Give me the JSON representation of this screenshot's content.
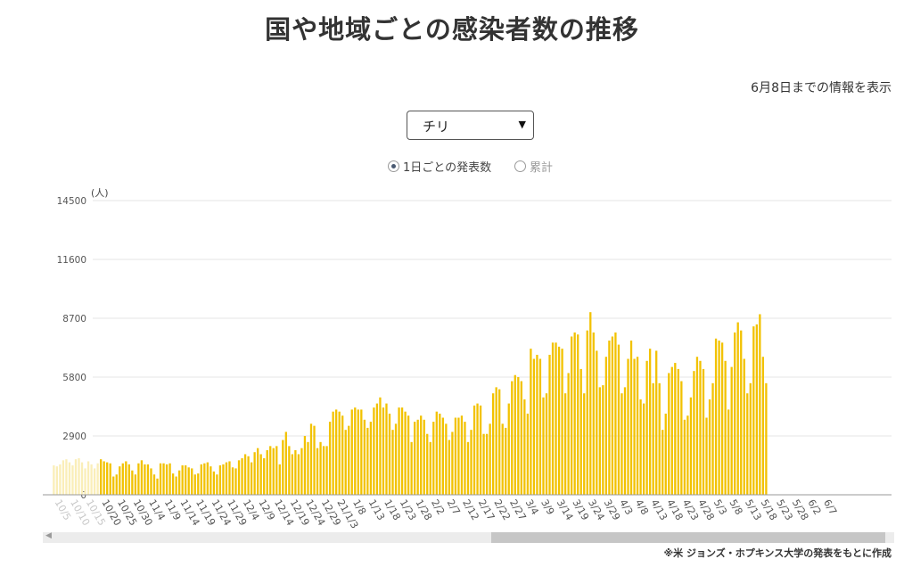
{
  "header": {
    "title": "国や地域ごとの感染者数の推移",
    "update_note": "6月8日までの情報を表示"
  },
  "controls": {
    "country_selected": "チリ",
    "radio_daily": "1日ごとの発表数",
    "radio_cumulative": "累計",
    "daily_selected": true
  },
  "footnote": "※米 ジョンズ・ホプキンス大学の発表をもとに作成",
  "colors": {
    "bar": "#f2c200",
    "bar_faded": "#faeeb8",
    "grid": "#e6e6e6"
  },
  "chart_data": {
    "type": "bar",
    "title": "",
    "ylabel": "(人)",
    "ylim": [
      0,
      14500
    ],
    "yticks": [
      0,
      2900,
      5800,
      8700,
      11600,
      14500
    ],
    "start_date": "2020-10-05",
    "end_date": "2021-06-08",
    "faded_count": 15,
    "xtick_labels": [
      "10/5",
      "10/10",
      "10/15",
      "10/20",
      "10/25",
      "10/30",
      "11/4",
      "11/9",
      "11/14",
      "11/19",
      "11/24",
      "11/29",
      "12/4",
      "12/9",
      "12/14",
      "12/19",
      "12/24",
      "12/29",
      "21/1/3",
      "1/8",
      "1/13",
      "1/18",
      "1/23",
      "1/28",
      "2/2",
      "2/7",
      "2/12",
      "2/17",
      "2/22",
      "2/27",
      "3/4",
      "3/9",
      "3/14",
      "3/19",
      "3/24",
      "3/29",
      "4/3",
      "4/8",
      "4/13",
      "4/18",
      "4/23",
      "4/28",
      "5/3",
      "5/8",
      "5/13",
      "5/18",
      "5/23",
      "5/28",
      "6/2",
      "6/7"
    ],
    "values": [
      1450,
      1400,
      1500,
      1700,
      1750,
      1600,
      1450,
      1750,
      1800,
      1600,
      1300,
      1650,
      1500,
      1300,
      1550,
      1750,
      1650,
      1600,
      1550,
      900,
      1000,
      1400,
      1550,
      1650,
      1500,
      1200,
      1000,
      1550,
      1700,
      1500,
      1500,
      1300,
      1000,
      800,
      1550,
      1550,
      1500,
      1550,
      1050,
      900,
      1200,
      1450,
      1450,
      1350,
      1300,
      1000,
      1050,
      1500,
      1550,
      1600,
      1400,
      1150,
      1000,
      1450,
      1500,
      1600,
      1650,
      1350,
      1300,
      1700,
      1800,
      2000,
      1900,
      1600,
      2100,
      2300,
      2000,
      1800,
      2200,
      2400,
      2300,
      2400,
      1500,
      2700,
      3100,
      2400,
      2000,
      2200,
      2000,
      2300,
      2900,
      2600,
      3500,
      3400,
      2300,
      2600,
      2400,
      2400,
      3600,
      4100,
      4200,
      4100,
      3900,
      3200,
      3400,
      4200,
      4300,
      4200,
      4200,
      3700,
      3300,
      3600,
      4300,
      4500,
      4800,
      4300,
      4500,
      4000,
      3200,
      3500,
      4300,
      4300,
      4100,
      3900,
      2600,
      3600,
      3700,
      3900,
      3700,
      3000,
      2600,
      3600,
      4100,
      4000,
      3800,
      3500,
      2700,
      3100,
      3800,
      3800,
      3900,
      3600,
      2600,
      3200,
      4400,
      4500,
      4400,
      3000,
      3000,
      3500,
      5000,
      5300,
      5200,
      3500,
      3300,
      4500,
      5600,
      5900,
      5800,
      5600,
      4700,
      4000,
      7200,
      6700,
      6900,
      6700,
      4800,
      5000,
      6900,
      7500,
      7500,
      7300,
      7200,
      5000,
      6000,
      7800,
      8000,
      7900,
      6200,
      5000,
      8100,
      9000,
      8000,
      7100,
      5300,
      5400,
      6800,
      7600,
      7800,
      8000,
      7400,
      5000,
      5300,
      6700,
      7600,
      6700,
      6800,
      4700,
      4500,
      6600,
      7200,
      5500,
      7100,
      5500,
      3200,
      4000,
      6000,
      6300,
      6500,
      6200,
      5600,
      3700,
      3900,
      4800,
      6100,
      6800,
      6600,
      6200,
      3800,
      4700,
      5500,
      7700,
      7600,
      7500,
      6600,
      4200,
      6300,
      8000,
      8500,
      8100,
      6700,
      5000,
      5500,
      8300,
      8400,
      8900,
      6800,
      5500
    ],
    "grid": true
  }
}
